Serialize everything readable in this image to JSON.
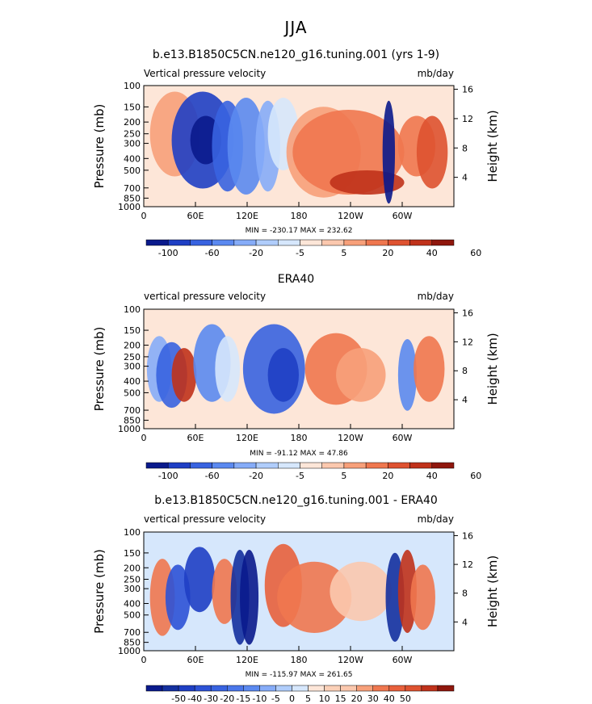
{
  "main_title": "JJA",
  "chart_data": [
    {
      "type": "heatmap",
      "title": "b.e13.B1850C5CN.ne120_g16.tuning.001 (yrs 1-9)",
      "subtitle_left": "Vertical pressure velocity",
      "subtitle_right": "mb/day",
      "ylabel": "Pressure (mb)",
      "y2label": "Height (km)",
      "yticks": [
        "100",
        "150",
        "200",
        "250",
        "300",
        "400",
        "500",
        "700",
        "850",
        "1000"
      ],
      "y2ticks": [
        "16",
        "12",
        "8",
        "4"
      ],
      "xticks": [
        "0",
        "60E",
        "120E",
        "180",
        "120W",
        "60W"
      ],
      "stats": "MIN = -230.17   MAX = 232.62",
      "colorbar_labels": [
        "-100",
        "-60",
        "-20",
        "-5",
        "5",
        "20",
        "40",
        "60"
      ],
      "colorbar_colors": [
        "#0a1a8c",
        "#1f3fc4",
        "#3863e0",
        "#5b89f0",
        "#86acf8",
        "#b0cdfb",
        "#d6e7fc",
        "#fde6d8",
        "#fbc8ae",
        "#f7a07a",
        "#ef774f",
        "#de5230",
        "#c0321b",
        "#8f170d"
      ]
    },
    {
      "type": "heatmap",
      "title": "ERA40",
      "subtitle_left": "vertical pressure velocity",
      "subtitle_right": "mb/day",
      "ylabel": "Pressure (mb)",
      "y2label": "Height (km)",
      "yticks": [
        "100",
        "150",
        "200",
        "250",
        "300",
        "400",
        "500",
        "700",
        "850",
        "1000"
      ],
      "y2ticks": [
        "16",
        "12",
        "8",
        "4"
      ],
      "xticks": [
        "0",
        "60E",
        "120E",
        "180",
        "120W",
        "60W"
      ],
      "stats": "MIN = -91.12   MAX = 47.86",
      "colorbar_labels": [
        "-100",
        "-60",
        "-20",
        "-5",
        "5",
        "20",
        "40",
        "60"
      ],
      "colorbar_colors": [
        "#0a1a8c",
        "#1f3fc4",
        "#3863e0",
        "#5b89f0",
        "#86acf8",
        "#b0cdfb",
        "#d6e7fc",
        "#fde6d8",
        "#fbc8ae",
        "#f7a07a",
        "#ef774f",
        "#de5230",
        "#c0321b",
        "#8f170d"
      ]
    },
    {
      "type": "heatmap",
      "title": "b.e13.B1850C5CN.ne120_g16.tuning.001 - ERA40",
      "subtitle_left": "vertical pressure velocity",
      "subtitle_right": "mb/day",
      "ylabel": "Pressure (mb)",
      "y2label": "Height (km)",
      "yticks": [
        "100",
        "150",
        "200",
        "250",
        "300",
        "400",
        "500",
        "700",
        "850",
        "1000"
      ],
      "y2ticks": [
        "16",
        "12",
        "8",
        "4"
      ],
      "xticks": [
        "0",
        "60E",
        "120E",
        "180",
        "120W",
        "60W"
      ],
      "stats": "MIN = -115.97   MAX = 261.65",
      "colorbar_labels": [
        "-50",
        "-40",
        "-30",
        "-20",
        "-15",
        "-10",
        "-5",
        "0",
        "5",
        "10",
        "15",
        "20",
        "30",
        "40",
        "50"
      ],
      "colorbar_colors": [
        "#0a1a8c",
        "#14309f",
        "#1f3fc4",
        "#2d52d6",
        "#3863e0",
        "#4a77ea",
        "#5b89f0",
        "#86acf8",
        "#b0cdfb",
        "#d6e7fc",
        "#fde6d8",
        "#fbd0b8",
        "#fbc8ae",
        "#f7a07a",
        "#ef774f",
        "#e8603c",
        "#de5230",
        "#c0321b",
        "#8f170d"
      ]
    }
  ]
}
